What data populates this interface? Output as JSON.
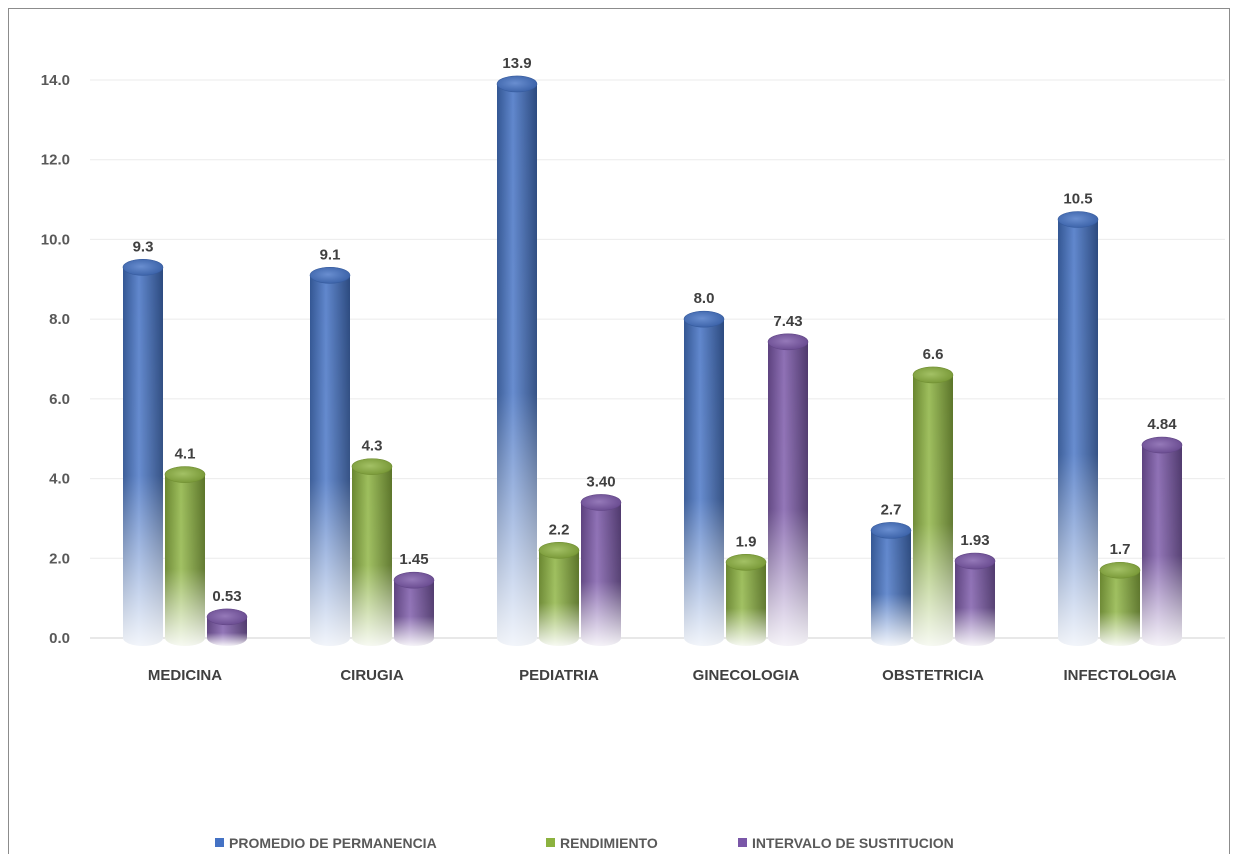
{
  "chart_data": {
    "type": "bar",
    "categories": [
      "MEDICINA",
      "CIRUGIA",
      "PEDIATRIA",
      "GINECOLOGIA",
      "OBSTETRICIA",
      "INFECTOLOGIA"
    ],
    "series": [
      {
        "name": "PROMEDIO DE PERMANENCIA",
        "values": [
          9.3,
          9.1,
          13.9,
          8.0,
          2.7,
          10.5
        ],
        "labels": [
          "9.3",
          "9.1",
          "13.9",
          "8.0",
          "2.7",
          "10.5"
        ],
        "color": "#4472c4"
      },
      {
        "name": "RENDIMIENTO",
        "values": [
          4.1,
          4.3,
          2.2,
          1.9,
          6.6,
          1.7
        ],
        "labels": [
          "4.1",
          "4.3",
          "2.2",
          "1.9",
          "6.6",
          "1.7"
        ],
        "color": "#8cb23f"
      },
      {
        "name": "INTERVALO DE SUSTITUCION",
        "values": [
          0.53,
          1.45,
          3.4,
          7.43,
          1.93,
          4.84
        ],
        "labels": [
          "0.53",
          "1.45",
          "3.40",
          "7.43",
          "1.93",
          "4.84"
        ],
        "color": "#7a57a8"
      }
    ],
    "y_ticks": [
      "0.0",
      "2.0",
      "4.0",
      "6.0",
      "8.0",
      "10.0",
      "12.0",
      "14.0"
    ],
    "ylim": [
      0,
      14
    ],
    "grid": true,
    "legend": "bottom"
  }
}
